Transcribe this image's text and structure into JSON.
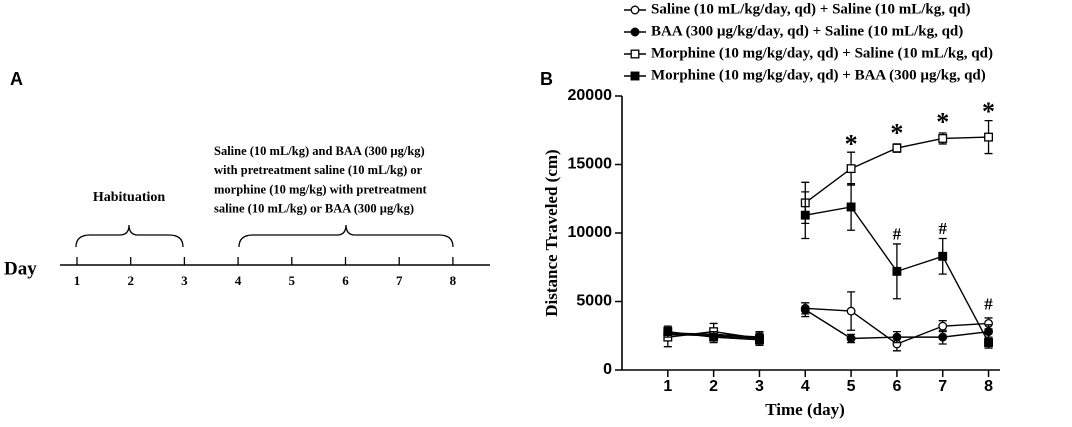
{
  "panel_a": {
    "label": "A",
    "axis_label": "Day",
    "days": [
      1,
      2,
      3,
      4,
      5,
      6,
      7,
      8
    ],
    "phase_1": "Habituation",
    "phase_2": [
      "Saline (10 mL/kg) and BAA (300 µg/kg)",
      "with pretreatment saline (10 mL/kg) or",
      "morphine (10 mg/kg) with pretreatment",
      "saline (10 mL/kg) or BAA (300 µg/kg)"
    ]
  },
  "chart_data": {
    "type": "line",
    "panel_label": "B",
    "x_label": "Time (day)",
    "y_label": "Distance Traveled (cm)",
    "x": [
      1,
      2,
      3,
      null,
      4,
      5,
      6,
      7,
      8
    ],
    "xlim": [
      0,
      8.25
    ],
    "xticks": [
      1,
      2,
      3,
      4,
      5,
      6,
      7,
      8
    ],
    "ylim": [
      0,
      20000
    ],
    "yticks": [
      0,
      5000,
      10000,
      15000,
      20000
    ],
    "series": [
      {
        "name": "Saline (10 mL/kg/day, qd) + Saline (10 mL/kg, qd)",
        "color": "#000",
        "marker": "open-circle",
        "values": [
          2600,
          2500,
          2300,
          null,
          4500,
          4300,
          1900,
          3200,
          3400
        ],
        "errors": [
          300,
          300,
          300,
          null,
          400,
          1400,
          500,
          400,
          400
        ]
      },
      {
        "name": "BAA (300 µg/kg/day, qd) + Saline (10 mL/kg, qd)",
        "color": "#000",
        "marker": "filled-circle",
        "values": [
          2700,
          2600,
          2400,
          null,
          4400,
          2300,
          2400,
          2400,
          2800
        ],
        "errors": [
          400,
          300,
          300,
          null,
          500,
          300,
          400,
          500,
          500
        ]
      },
      {
        "name": "Morphine (10 mg/kg/day, qd) + Saline (10 mL/kg, qd)",
        "color": "#000",
        "marker": "open-square",
        "values": [
          2400,
          2800,
          2300,
          null,
          12200,
          14700,
          16200,
          16900,
          17000
        ],
        "errors": [
          700,
          600,
          500,
          null,
          1500,
          1200,
          300,
          400,
          1200
        ]
      },
      {
        "name": "Morphine (10 mg/kg/day, qd) + BAA (300 µg/kg, qd)",
        "color": "#000",
        "marker": "filled-square",
        "values": [
          2800,
          2400,
          2200,
          null,
          11300,
          11900,
          7200,
          8300,
          2000
        ],
        "errors": [
          400,
          400,
          300,
          null,
          1700,
          1700,
          2000,
          1300,
          400
        ]
      }
    ],
    "annotations": [
      {
        "text": "*",
        "x": 5,
        "y": 16300
      },
      {
        "text": "*",
        "x": 6,
        "y": 17100
      },
      {
        "text": "*",
        "x": 7,
        "y": 17900
      },
      {
        "text": "*",
        "x": 8,
        "y": 18700
      },
      {
        "text": "#",
        "x": 6,
        "y": 9800
      },
      {
        "text": "#",
        "x": 7,
        "y": 10200
      },
      {
        "text": "#",
        "x": 8,
        "y": 4700
      }
    ]
  }
}
